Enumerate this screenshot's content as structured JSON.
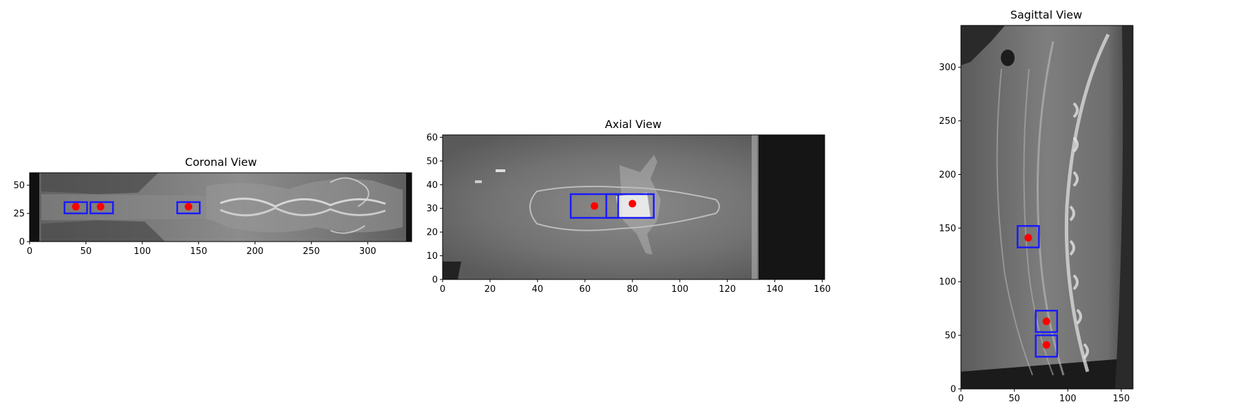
{
  "colors": {
    "box": "#1a1aff",
    "point": "#ff0000",
    "axis": "#000000",
    "background": "#ffffff"
  },
  "chart_data": [
    {
      "type": "scatter",
      "title": "Coronal View",
      "xlim": [
        0,
        339
      ],
      "ylim": [
        0,
        61
      ],
      "xticks": [
        0,
        50,
        100,
        150,
        200,
        250,
        300
      ],
      "yticks": [
        0,
        25,
        50
      ],
      "image": "grayscale CT coronal slice",
      "boxes": [
        {
          "x0": 31,
          "x1": 51,
          "y0": 25,
          "y1": 35
        },
        {
          "x0": 54,
          "x1": 74,
          "y0": 25,
          "y1": 35
        },
        {
          "x0": 131,
          "x1": 151,
          "y0": 25,
          "y1": 35
        }
      ],
      "points": [
        {
          "x": 41,
          "y": 31
        },
        {
          "x": 63,
          "y": 31
        },
        {
          "x": 141,
          "y": 31
        }
      ]
    },
    {
      "type": "scatter",
      "title": "Axial View",
      "xlim": [
        0,
        161
      ],
      "ylim": [
        0,
        61
      ],
      "xticks": [
        0,
        20,
        40,
        60,
        80,
        100,
        120,
        140,
        160
      ],
      "yticks": [
        0,
        10,
        20,
        30,
        40,
        50,
        60
      ],
      "image": "grayscale CT axial slice",
      "boxes": [
        {
          "x0": 54,
          "x1": 74,
          "y0": 26,
          "y1": 36
        },
        {
          "x0": 69,
          "x1": 89,
          "y0": 26,
          "y1": 36
        }
      ],
      "points": [
        {
          "x": 64,
          "y": 31
        },
        {
          "x": 80,
          "y": 32
        }
      ]
    },
    {
      "type": "scatter",
      "title": "Sagittal View",
      "xlim": [
        0,
        161
      ],
      "ylim": [
        0,
        339
      ],
      "xticks": [
        0,
        50,
        100,
        150
      ],
      "yticks": [
        0,
        50,
        100,
        150,
        200,
        250,
        300
      ],
      "image": "grayscale CT sagittal slice",
      "boxes": [
        {
          "x0": 53,
          "x1": 73,
          "y0": 132,
          "y1": 152
        },
        {
          "x0": 70,
          "x1": 90,
          "y0": 53,
          "y1": 73
        },
        {
          "x0": 70,
          "x1": 90,
          "y0": 30,
          "y1": 50
        }
      ],
      "points": [
        {
          "x": 63,
          "y": 141
        },
        {
          "x": 80,
          "y": 63
        },
        {
          "x": 80,
          "y": 41
        }
      ]
    }
  ]
}
